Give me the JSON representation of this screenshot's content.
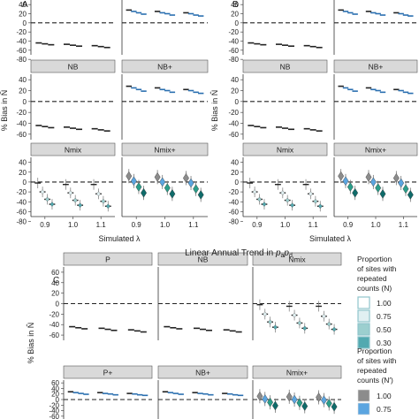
{
  "figure": {
    "section_title": "Linear Annual Trend in pₐpₐ",
    "section_title_prefix": "Linear Annual Trend in ",
    "y_axis_label": "% Bias in N̂",
    "x_axis_label": "Simulated λ",
    "legend": {
      "n_title": [
        "Proportion",
        "of sites with",
        "repeated",
        "counts (N)"
      ],
      "nstar_title": [
        "Proportion",
        "of sites with",
        "repeated",
        "counts (N′)"
      ],
      "levels": [
        "1.00",
        "0.75",
        "0.50",
        "0.30"
      ],
      "n_colors": [
        "#ffffff",
        "#e0f0f2",
        "#9ccfcf",
        "#52a9b0"
      ],
      "nstar_colors": [
        "#8c8c8c",
        "#5ba5e0",
        "#2a9e8a",
        "#0f6b6a"
      ]
    }
  },
  "chart_data": [
    {
      "type": "scatter",
      "panel_letter": "A",
      "ylim": [
        -70,
        50
      ],
      "y_ticks": [
        40,
        20,
        0,
        -20,
        -40,
        -60,
        -80
      ],
      "x_categories": [
        "0.9",
        "1.0",
        "1.1"
      ],
      "facets": [
        {
          "strip": "",
          "model": "P",
          "side": "left",
          "tops": true
        },
        {
          "strip": "",
          "model": "P+",
          "side": "right",
          "tops": true
        },
        {
          "strip": "NB",
          "model": "NB",
          "side": "left"
        },
        {
          "strip": "NB+",
          "model": "NB+",
          "side": "right"
        },
        {
          "strip": "Nmix",
          "model": "Nmix",
          "side": "left"
        },
        {
          "strip": "Nmix+",
          "model": "Nmix+",
          "side": "right"
        }
      ]
    },
    {
      "type": "scatter",
      "panel_letter": "B",
      "ylim": [
        -70,
        50
      ],
      "y_ticks": [
        40,
        20,
        0,
        -20,
        -40,
        -60,
        -80
      ],
      "x_categories": [
        "0.9",
        "1.0",
        "1.1"
      ],
      "facets": [
        {
          "strip": "",
          "model": "P",
          "side": "left",
          "tops": true
        },
        {
          "strip": "",
          "model": "P+",
          "side": "right",
          "tops": true
        },
        {
          "strip": "NB",
          "model": "NB",
          "side": "left"
        },
        {
          "strip": "NB+",
          "model": "NB+",
          "side": "right"
        },
        {
          "strip": "Nmix",
          "model": "Nmix",
          "side": "left"
        },
        {
          "strip": "Nmix+",
          "model": "Nmix+",
          "side": "right"
        }
      ]
    },
    {
      "type": "scatter",
      "panel_letter": "C",
      "ylim": [
        -70,
        70
      ],
      "y_ticks": [
        60,
        40,
        20,
        0,
        -20,
        -40,
        -60
      ],
      "x_categories": [
        "0.9",
        "1.0",
        "1.1"
      ],
      "facets": [
        {
          "strip": "P",
          "model": "P"
        },
        {
          "strip": "NB",
          "model": "NB"
        },
        {
          "strip": "Nmix",
          "model": "Nmix"
        },
        {
          "strip": "P+",
          "model": "P+"
        },
        {
          "strip": "NB+",
          "model": "NB+"
        },
        {
          "strip": "Nmix+",
          "model": "Nmix+"
        }
      ]
    }
  ],
  "series_values": {
    "P": {
      "0.9": [
        -44,
        -46,
        -48
      ],
      "1.0": [
        -47,
        -49,
        -51
      ],
      "1.1": [
        -50,
        -52,
        -54
      ]
    },
    "P+": {
      "0.9": [
        28,
        25,
        22,
        19
      ],
      "1.0": [
        25,
        22,
        20,
        17
      ],
      "1.1": [
        22,
        20,
        17,
        15
      ]
    },
    "NB": {
      "0.9": [
        -44,
        -46,
        -48
      ],
      "1.0": [
        -47,
        -49,
        -51
      ],
      "1.1": [
        -50,
        -52,
        -54
      ]
    },
    "NB+": {
      "0.9": [
        28,
        25,
        22,
        19
      ],
      "1.0": [
        25,
        22,
        20,
        17
      ],
      "1.1": [
        22,
        20,
        17,
        15
      ]
    },
    "Nmix": {
      "0.9": [
        -2,
        -20,
        -35,
        -45
      ],
      "1.0": [
        -5,
        -22,
        -37,
        -47
      ],
      "1.1": [
        -5,
        -24,
        -39,
        -49
      ]
    },
    "Nmix+": {
      "0.9": [
        12,
        2,
        -10,
        -22
      ],
      "1.0": [
        10,
        0,
        -12,
        -24
      ],
      "1.1": [
        8,
        -2,
        -14,
        -26
      ]
    }
  }
}
